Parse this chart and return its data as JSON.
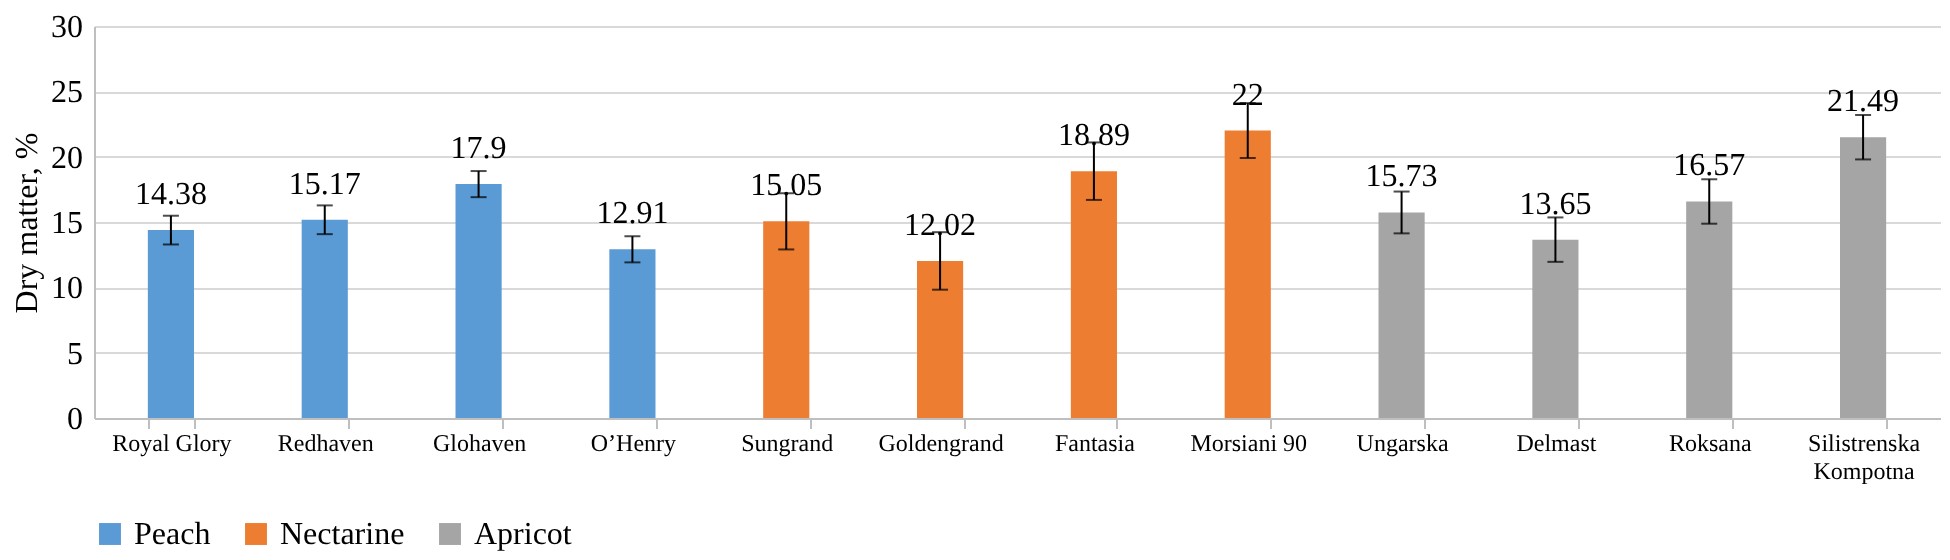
{
  "chart_data": {
    "type": "bar",
    "ylabel": "Dry matter, %",
    "categories": [
      "Royal Glory",
      "Redhaven",
      "Glohaven",
      "O’Henry",
      "Sungrand",
      "Goldengrand",
      "Fantasia",
      "Morsiani 90",
      "Ungarska",
      "Delmast",
      "Roksana",
      "Silistrenska Kompotna"
    ],
    "series": [
      {
        "name": "Peach",
        "color": "#5b9bd5",
        "values": [
          14.38,
          15.17,
          17.9,
          12.91,
          null,
          null,
          null,
          null,
          null,
          null,
          null,
          null
        ],
        "errors": [
          1.1,
          1.1,
          1.0,
          1.0,
          null,
          null,
          null,
          null,
          null,
          null,
          null,
          null
        ]
      },
      {
        "name": "Nectarine",
        "color": "#ed7d31",
        "values": [
          null,
          null,
          null,
          null,
          15.05,
          12.02,
          18.89,
          22,
          null,
          null,
          null,
          null
        ],
        "errors": [
          null,
          null,
          null,
          null,
          2.15,
          2.2,
          2.2,
          2.1,
          null,
          null,
          null,
          null
        ]
      },
      {
        "name": "Apricot",
        "color": "#a5a5a5",
        "values": [
          null,
          null,
          null,
          null,
          null,
          null,
          null,
          null,
          15.73,
          13.65,
          16.57,
          21.49
        ],
        "errors": [
          null,
          null,
          null,
          null,
          null,
          null,
          null,
          null,
          1.6,
          1.7,
          1.7,
          1.7
        ]
      }
    ],
    "ylim": [
      0,
      30
    ],
    "yticks": [
      0,
      5,
      10,
      15,
      20,
      25,
      30
    ],
    "grid": "y",
    "legend": "bottom",
    "data_labels": true
  }
}
